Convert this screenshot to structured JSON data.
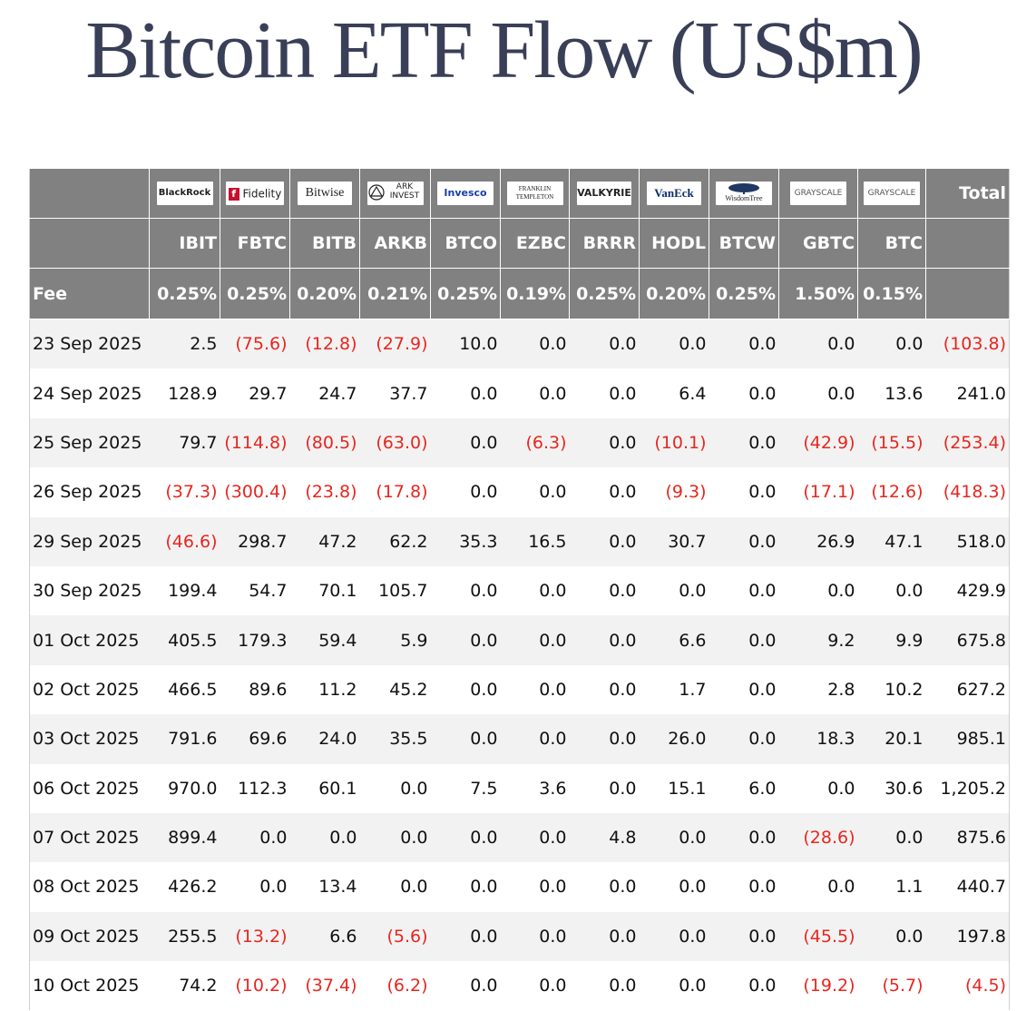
{
  "title": "Bitcoin ETF Flow (US$m)",
  "colors": {
    "header_bg": "#818181",
    "negative": "#e8261f",
    "stripe": "#f2f2f2",
    "title": "#3a3f58"
  },
  "columns": [
    {
      "issuer": "BlackRock",
      "ticker": "IBIT",
      "fee": "0.25%"
    },
    {
      "issuer": "Fidelity",
      "ticker": "FBTC",
      "fee": "0.25%"
    },
    {
      "issuer": "Bitwise",
      "ticker": "BITB",
      "fee": "0.20%"
    },
    {
      "issuer": "ARK INVEST",
      "ticker": "ARKB",
      "fee": "0.21%"
    },
    {
      "issuer": "Invesco",
      "ticker": "BTCO",
      "fee": "0.25%"
    },
    {
      "issuer": "FRANKLIN TEMPLETON",
      "ticker": "EZBC",
      "fee": "0.19%"
    },
    {
      "issuer": "VALKYRIE",
      "ticker": "BRRR",
      "fee": "0.25%"
    },
    {
      "issuer": "VanEck",
      "ticker": "HODL",
      "fee": "0.20%"
    },
    {
      "issuer": "WisdomTree",
      "ticker": "BTCW",
      "fee": "0.25%"
    },
    {
      "issuer": "GRAYSCALE",
      "ticker": "GBTC",
      "fee": "1.50%"
    },
    {
      "issuer": "GRAYSCALE",
      "ticker": "BTC",
      "fee": "0.15%"
    }
  ],
  "fee_label": "Fee",
  "total_label": "Total",
  "chart_data": {
    "type": "table",
    "title": "Bitcoin ETF Flow (US$m)",
    "headers": [
      "IBIT",
      "FBTC",
      "BITB",
      "ARKB",
      "BTCO",
      "EZBC",
      "BRRR",
      "HODL",
      "BTCW",
      "GBTC",
      "BTC",
      "Total"
    ],
    "rows": [
      {
        "date": "23 Sep 2025",
        "values": [
          "2.5",
          "(75.6)",
          "(12.8)",
          "(27.9)",
          "10.0",
          "0.0",
          "0.0",
          "0.0",
          "0.0",
          "0.0",
          "0.0",
          "(103.8)"
        ]
      },
      {
        "date": "24 Sep 2025",
        "values": [
          "128.9",
          "29.7",
          "24.7",
          "37.7",
          "0.0",
          "0.0",
          "0.0",
          "6.4",
          "0.0",
          "0.0",
          "13.6",
          "241.0"
        ]
      },
      {
        "date": "25 Sep 2025",
        "values": [
          "79.7",
          "(114.8)",
          "(80.5)",
          "(63.0)",
          "0.0",
          "(6.3)",
          "0.0",
          "(10.1)",
          "0.0",
          "(42.9)",
          "(15.5)",
          "(253.4)"
        ]
      },
      {
        "date": "26 Sep 2025",
        "values": [
          "(37.3)",
          "(300.4)",
          "(23.8)",
          "(17.8)",
          "0.0",
          "0.0",
          "0.0",
          "(9.3)",
          "0.0",
          "(17.1)",
          "(12.6)",
          "(418.3)"
        ]
      },
      {
        "date": "29 Sep 2025",
        "values": [
          "(46.6)",
          "298.7",
          "47.2",
          "62.2",
          "35.3",
          "16.5",
          "0.0",
          "30.7",
          "0.0",
          "26.9",
          "47.1",
          "518.0"
        ]
      },
      {
        "date": "30 Sep 2025",
        "values": [
          "199.4",
          "54.7",
          "70.1",
          "105.7",
          "0.0",
          "0.0",
          "0.0",
          "0.0",
          "0.0",
          "0.0",
          "0.0",
          "429.9"
        ]
      },
      {
        "date": "01 Oct 2025",
        "values": [
          "405.5",
          "179.3",
          "59.4",
          "5.9",
          "0.0",
          "0.0",
          "0.0",
          "6.6",
          "0.0",
          "9.2",
          "9.9",
          "675.8"
        ]
      },
      {
        "date": "02 Oct 2025",
        "values": [
          "466.5",
          "89.6",
          "11.2",
          "45.2",
          "0.0",
          "0.0",
          "0.0",
          "1.7",
          "0.0",
          "2.8",
          "10.2",
          "627.2"
        ]
      },
      {
        "date": "03 Oct 2025",
        "values": [
          "791.6",
          "69.6",
          "24.0",
          "35.5",
          "0.0",
          "0.0",
          "0.0",
          "26.0",
          "0.0",
          "18.3",
          "20.1",
          "985.1"
        ]
      },
      {
        "date": "06 Oct 2025",
        "values": [
          "970.0",
          "112.3",
          "60.1",
          "0.0",
          "7.5",
          "3.6",
          "0.0",
          "15.1",
          "6.0",
          "0.0",
          "30.6",
          "1,205.2"
        ]
      },
      {
        "date": "07 Oct 2025",
        "values": [
          "899.4",
          "0.0",
          "0.0",
          "0.0",
          "0.0",
          "0.0",
          "4.8",
          "0.0",
          "0.0",
          "(28.6)",
          "0.0",
          "875.6"
        ]
      },
      {
        "date": "08 Oct 2025",
        "values": [
          "426.2",
          "0.0",
          "13.4",
          "0.0",
          "0.0",
          "0.0",
          "0.0",
          "0.0",
          "0.0",
          "0.0",
          "1.1",
          "440.7"
        ]
      },
      {
        "date": "09 Oct 2025",
        "values": [
          "255.5",
          "(13.2)",
          "6.6",
          "(5.6)",
          "0.0",
          "0.0",
          "0.0",
          "0.0",
          "0.0",
          "(45.5)",
          "0.0",
          "197.8"
        ]
      },
      {
        "date": "10 Oct 2025",
        "values": [
          "74.2",
          "(10.2)",
          "(37.4)",
          "(6.2)",
          "0.0",
          "0.0",
          "0.0",
          "0.0",
          "0.0",
          "(19.2)",
          "(5.7)",
          "(4.5)"
        ]
      }
    ]
  }
}
